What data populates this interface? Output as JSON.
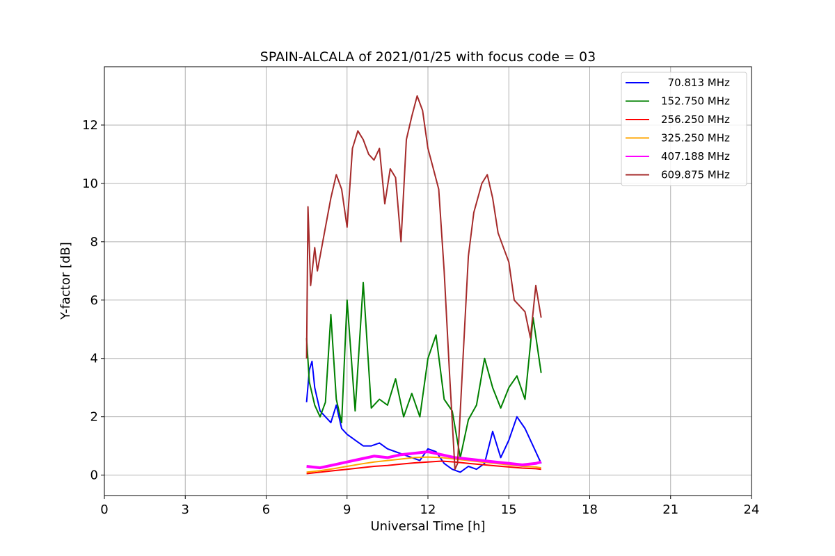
{
  "chart_data": {
    "type": "line",
    "title": "SPAIN-ALCALA of 2021/01/25 with focus code = 03",
    "xlabel": "Universal Time [h]",
    "ylabel": "Y-factor [dB]",
    "xlim": [
      0,
      24
    ],
    "ylim": [
      -0.7,
      14.0
    ],
    "xticks": [
      0,
      3,
      6,
      9,
      12,
      15,
      18,
      21,
      24
    ],
    "yticks": [
      0,
      2,
      4,
      6,
      8,
      10,
      12
    ],
    "grid": true,
    "legend_position": "top-right",
    "series": [
      {
        "name": "  70.813 MHz",
        "color": "#0000ff",
        "x": [
          7.5,
          7.6,
          7.7,
          7.8,
          7.9,
          8.0,
          8.2,
          8.4,
          8.6,
          8.8,
          9.0,
          9.3,
          9.6,
          9.9,
          10.2,
          10.5,
          10.8,
          11.1,
          11.4,
          11.7,
          12.0,
          12.3,
          12.6,
          12.9,
          13.2,
          13.5,
          13.8,
          14.1,
          14.4,
          14.7,
          15.0,
          15.3,
          15.6,
          15.9,
          16.2
        ],
        "values": [
          2.5,
          3.6,
          3.9,
          3.0,
          2.6,
          2.2,
          2.0,
          1.8,
          2.4,
          1.6,
          1.4,
          1.2,
          1.0,
          1.0,
          1.1,
          0.9,
          0.8,
          0.7,
          0.6,
          0.5,
          0.9,
          0.8,
          0.4,
          0.2,
          0.1,
          0.3,
          0.2,
          0.4,
          1.5,
          0.6,
          1.2,
          2.0,
          1.6,
          1.0,
          0.4
        ]
      },
      {
        "name": "152.750 MHz",
        "color": "#008000",
        "x": [
          7.5,
          7.6,
          7.7,
          7.8,
          7.9,
          8.0,
          8.2,
          8.4,
          8.6,
          8.8,
          9.0,
          9.3,
          9.6,
          9.9,
          10.2,
          10.5,
          10.8,
          11.1,
          11.4,
          11.7,
          12.0,
          12.3,
          12.6,
          12.9,
          13.2,
          13.5,
          13.8,
          14.1,
          14.4,
          14.7,
          15.0,
          15.3,
          15.6,
          15.9,
          16.2
        ],
        "values": [
          4.7,
          3.2,
          2.8,
          2.4,
          2.2,
          2.0,
          2.5,
          5.5,
          2.6,
          1.8,
          6.0,
          2.2,
          6.6,
          2.3,
          2.6,
          2.4,
          3.3,
          2.0,
          2.8,
          2.0,
          4.0,
          4.8,
          2.6,
          2.2,
          0.6,
          1.9,
          2.4,
          4.0,
          3.0,
          2.3,
          3.0,
          3.4,
          2.6,
          5.4,
          3.5
        ]
      },
      {
        "name": "256.250 MHz",
        "color": "#ff0000",
        "x": [
          7.5,
          8.0,
          8.5,
          9.0,
          9.5,
          10.0,
          10.5,
          11.0,
          11.5,
          12.0,
          12.5,
          13.0,
          13.5,
          14.0,
          14.5,
          15.0,
          15.5,
          16.0,
          16.2
        ],
        "values": [
          0.05,
          0.1,
          0.15,
          0.2,
          0.25,
          0.3,
          0.33,
          0.38,
          0.42,
          0.45,
          0.48,
          0.45,
          0.4,
          0.36,
          0.32,
          0.28,
          0.24,
          0.22,
          0.2
        ]
      },
      {
        "name": "325.250 MHz",
        "color": "#ffa500",
        "x": [
          7.5,
          8.0,
          8.5,
          9.0,
          9.5,
          10.0,
          10.5,
          11.0,
          11.5,
          12.0,
          12.5,
          13.0,
          13.5,
          14.0,
          14.5,
          15.0,
          15.5,
          16.0,
          16.2
        ],
        "values": [
          0.1,
          0.15,
          0.22,
          0.3,
          0.38,
          0.45,
          0.5,
          0.55,
          0.6,
          0.62,
          0.6,
          0.55,
          0.5,
          0.45,
          0.4,
          0.35,
          0.3,
          0.28,
          0.25
        ]
      },
      {
        "name": "407.188 MHz",
        "color": "#ff00ff",
        "x": [
          7.5,
          8.0,
          8.5,
          9.0,
          9.5,
          10.0,
          10.5,
          11.0,
          11.5,
          12.0,
          12.5,
          13.0,
          13.5,
          14.0,
          14.5,
          15.0,
          15.5,
          16.0,
          16.2
        ],
        "values": [
          0.3,
          0.25,
          0.35,
          0.45,
          0.55,
          0.65,
          0.6,
          0.7,
          0.75,
          0.8,
          0.7,
          0.6,
          0.55,
          0.5,
          0.45,
          0.4,
          0.35,
          0.4,
          0.45
        ]
      },
      {
        "name": "609.875 MHz",
        "color": "#a52a2a",
        "x": [
          7.5,
          7.55,
          7.65,
          7.8,
          7.9,
          8.0,
          8.2,
          8.4,
          8.6,
          8.8,
          9.0,
          9.2,
          9.4,
          9.6,
          9.8,
          10.0,
          10.2,
          10.4,
          10.6,
          10.8,
          11.0,
          11.2,
          11.4,
          11.6,
          11.8,
          12.0,
          12.2,
          12.4,
          12.6,
          12.8,
          13.0,
          13.1,
          13.3,
          13.5,
          13.7,
          14.0,
          14.2,
          14.4,
          14.6,
          14.8,
          15.0,
          15.2,
          15.4,
          15.6,
          15.8,
          16.0,
          16.2
        ],
        "values": [
          4.0,
          9.2,
          6.5,
          7.8,
          7.0,
          7.5,
          8.5,
          9.5,
          10.3,
          9.8,
          8.5,
          11.2,
          11.8,
          11.5,
          11.0,
          10.8,
          11.2,
          9.3,
          10.5,
          10.2,
          8.0,
          11.5,
          12.3,
          13.0,
          12.5,
          11.2,
          10.5,
          9.8,
          7.0,
          3.5,
          0.2,
          0.4,
          4.0,
          7.5,
          9.0,
          10.0,
          10.3,
          9.5,
          8.3,
          7.8,
          7.3,
          6.0,
          5.8,
          5.6,
          4.7,
          6.5,
          5.4
        ]
      }
    ]
  }
}
